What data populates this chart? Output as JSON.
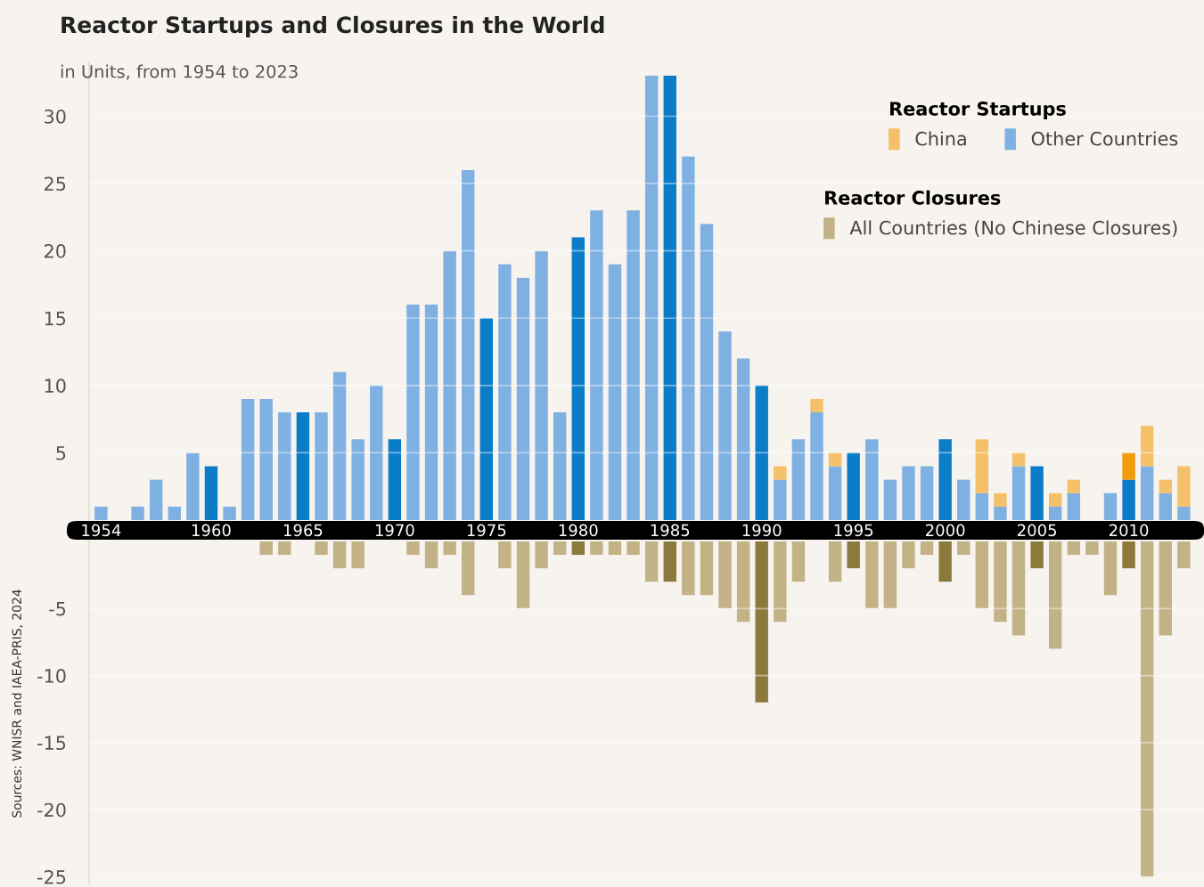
{
  "chart_data": [
    {
      "type": "bar",
      "stacked": true,
      "title": "Reactor Startups and Closures in the World",
      "subtitle": "in Units, from 1954 to 2023",
      "legend_title": "Reactor Startups",
      "legend": "top right",
      "grid": "y",
      "categories": [
        "1954",
        null,
        null,
        null,
        null,
        null,
        "1960",
        null,
        null,
        null,
        null,
        "1965",
        null,
        null,
        null,
        null,
        "1970",
        null,
        null,
        null,
        null,
        "1975",
        null,
        null,
        null,
        null,
        "1980",
        null,
        null,
        null,
        null,
        "1985",
        null,
        null,
        null,
        null,
        "1990",
        null,
        null,
        null,
        null,
        "1995",
        null,
        null,
        null,
        null,
        "2000",
        null,
        null,
        null,
        null,
        "2005",
        null,
        null,
        null,
        null,
        "2010",
        null,
        null,
        null
      ],
      "ylim": [
        0,
        34
      ],
      "yticks": [
        5,
        10,
        15,
        20,
        25,
        30
      ],
      "series": [
        {
          "name": "Other Countries",
          "color": "#7fb0e2",
          "values": [
            1,
            0,
            1,
            3,
            1,
            5,
            4,
            1,
            9,
            9,
            8,
            8,
            8,
            11,
            6,
            10,
            6,
            16,
            16,
            20,
            26,
            15,
            19,
            18,
            20,
            8,
            21,
            23,
            19,
            23,
            33,
            33,
            27,
            22,
            14,
            12,
            10,
            3,
            6,
            8,
            4,
            5,
            6,
            3,
            4,
            4,
            6,
            3,
            2,
            1,
            4,
            4,
            1,
            2,
            0,
            2,
            3,
            4,
            2,
            1
          ],
          "colors": [
            "#7fb0e2",
            "#7fb0e2",
            "#7fb0e2",
            "#7fb0e2",
            "#7fb0e2",
            "#7fb0e2",
            "#0b7dc8",
            "#7fb0e2",
            "#7fb0e2",
            "#7fb0e2",
            "#7fb0e2",
            "#0b7dc8",
            "#7fb0e2",
            "#7fb0e2",
            "#7fb0e2",
            "#7fb0e2",
            "#0b7dc8",
            "#7fb0e2",
            "#7fb0e2",
            "#7fb0e2",
            "#7fb0e2",
            "#0b7dc8",
            "#7fb0e2",
            "#7fb0e2",
            "#7fb0e2",
            "#7fb0e2",
            "#0b7dc8",
            "#7fb0e2",
            "#7fb0e2",
            "#7fb0e2",
            "#7fb0e2",
            "#0b7dc8",
            "#7fb0e2",
            "#7fb0e2",
            "#7fb0e2",
            "#7fb0e2",
            "#0b7dc8",
            "#7fb0e2",
            "#7fb0e2",
            "#7fb0e2",
            "#7fb0e2",
            "#0b7dc8",
            "#7fb0e2",
            "#7fb0e2",
            "#7fb0e2",
            "#7fb0e2",
            "#0b7dc8",
            "#7fb0e2",
            "#7fb0e2",
            "#7fb0e2",
            "#7fb0e2",
            "#0b7dc8",
            "#7fb0e2",
            "#7fb0e2",
            "#7fb0e2",
            "#7fb0e2",
            "#0b7dc8",
            "#7fb0e2",
            "#7fb0e2",
            "#7fb0e2"
          ]
        },
        {
          "name": "China",
          "color": "#f5c06a",
          "values": [
            0,
            0,
            0,
            0,
            0,
            0,
            0,
            0,
            0,
            0,
            0,
            0,
            0,
            0,
            0,
            0,
            0,
            0,
            0,
            0,
            0,
            0,
            0,
            0,
            0,
            0,
            0,
            0,
            0,
            0,
            0,
            0,
            0,
            0,
            0,
            0,
            0,
            1,
            0,
            1,
            1,
            0,
            0,
            0,
            0,
            0,
            0,
            0,
            4,
            1,
            1,
            0,
            1,
            1,
            0,
            0,
            2,
            3,
            1,
            3
          ],
          "colors": [
            "#f5c06a",
            "#f5c06a",
            "#f5c06a",
            "#f5c06a",
            "#f5c06a",
            "#f5c06a",
            "#f5c06a",
            "#f5c06a",
            "#f5c06a",
            "#f5c06a",
            "#f5c06a",
            "#f5c06a",
            "#f5c06a",
            "#f5c06a",
            "#f5c06a",
            "#f5c06a",
            "#f5c06a",
            "#f5c06a",
            "#f5c06a",
            "#f5c06a",
            "#f5c06a",
            "#f5c06a",
            "#f5c06a",
            "#f5c06a",
            "#f5c06a",
            "#f5c06a",
            "#f5c06a",
            "#f5c06a",
            "#f5c06a",
            "#f5c06a",
            "#f5c06a",
            "#f5c06a",
            "#f5c06a",
            "#f5c06a",
            "#f5c06a",
            "#f5c06a",
            "#f5c06a",
            "#f5c06a",
            "#f5c06a",
            "#f5c06a",
            "#f5c06a",
            "#f5c06a",
            "#f5c06a",
            "#f5c06a",
            "#f5c06a",
            "#f5c06a",
            "#f5c06a",
            "#f5c06a",
            "#f5c06a",
            "#f5c06a",
            "#f5c06a",
            "#f5c06a",
            "#f5c06a",
            "#f5c06a",
            "#f5c06a",
            "#f5c06a",
            "#f29b0c",
            "#f5c06a",
            "#f5c06a",
            "#f5c06a"
          ]
        }
      ]
    },
    {
      "type": "bar",
      "legend_title": "Reactor Closures",
      "legend": "top right",
      "grid": "y",
      "tick_labels": "y",
      "annotations": [
        "Sources: WNISR and IAEA-PRIS, 2024"
      ],
      "categories": [
        "1954",
        null,
        null,
        null,
        null,
        null,
        "1960",
        null,
        null,
        null,
        null,
        "1965",
        null,
        null,
        null,
        null,
        "1970",
        null,
        null,
        null,
        null,
        "1975",
        null,
        null,
        null,
        null,
        "1980",
        null,
        null,
        null,
        null,
        "1985",
        null,
        null,
        null,
        null,
        "1990",
        null,
        null,
        null,
        null,
        "1995",
        null,
        null,
        null,
        null,
        "2000",
        null,
        null,
        null,
        null,
        "2005",
        null,
        null,
        null,
        null,
        "2010",
        null,
        null,
        null
      ],
      "ylim": [
        -25.5,
        0
      ],
      "yticks": [
        -5,
        -10,
        -15,
        -20,
        -25
      ],
      "series": [
        {
          "name": "All Countries (No Chinese Closures)",
          "color": "#c2b286",
          "values": [
            0,
            0,
            0,
            0,
            0,
            0,
            0,
            0,
            0,
            -1,
            -1,
            0,
            -1,
            -2,
            -2,
            0,
            0,
            -1,
            -2,
            -1,
            -4,
            0,
            -2,
            -5,
            -2,
            -1,
            -1,
            -1,
            -1,
            -1,
            -3,
            -3,
            -4,
            -4,
            -5,
            -6,
            -12,
            -6,
            -3,
            0,
            -3,
            -2,
            -5,
            -5,
            -2,
            -1,
            -3,
            -1,
            -5,
            -6,
            -7,
            -2,
            -8,
            -1,
            -1,
            -4,
            -2,
            -25,
            -7,
            -2
          ],
          "colors": [
            "#c2b286",
            "#c2b286",
            "#c2b286",
            "#c2b286",
            "#c2b286",
            "#c2b286",
            "#8c7a3c",
            "#c2b286",
            "#c2b286",
            "#c2b286",
            "#c2b286",
            "#8c7a3c",
            "#c2b286",
            "#c2b286",
            "#c2b286",
            "#c2b286",
            "#8c7a3c",
            "#c2b286",
            "#c2b286",
            "#c2b286",
            "#c2b286",
            "#8c7a3c",
            "#c2b286",
            "#c2b286",
            "#c2b286",
            "#c2b286",
            "#8c7a3c",
            "#c2b286",
            "#c2b286",
            "#c2b286",
            "#c2b286",
            "#8c7a3c",
            "#c2b286",
            "#c2b286",
            "#c2b286",
            "#c2b286",
            "#8c7a3c",
            "#c2b286",
            "#c2b286",
            "#c2b286",
            "#c2b286",
            "#8c7a3c",
            "#c2b286",
            "#c2b286",
            "#c2b286",
            "#c2b286",
            "#8c7a3c",
            "#c2b286",
            "#c2b286",
            "#c2b286",
            "#c2b286",
            "#8c7a3c",
            "#c2b286",
            "#c2b286",
            "#c2b286",
            "#c2b286",
            "#8c7a3c",
            "#c2b286",
            "#c2b286",
            "#c2b286"
          ]
        }
      ]
    }
  ]
}
